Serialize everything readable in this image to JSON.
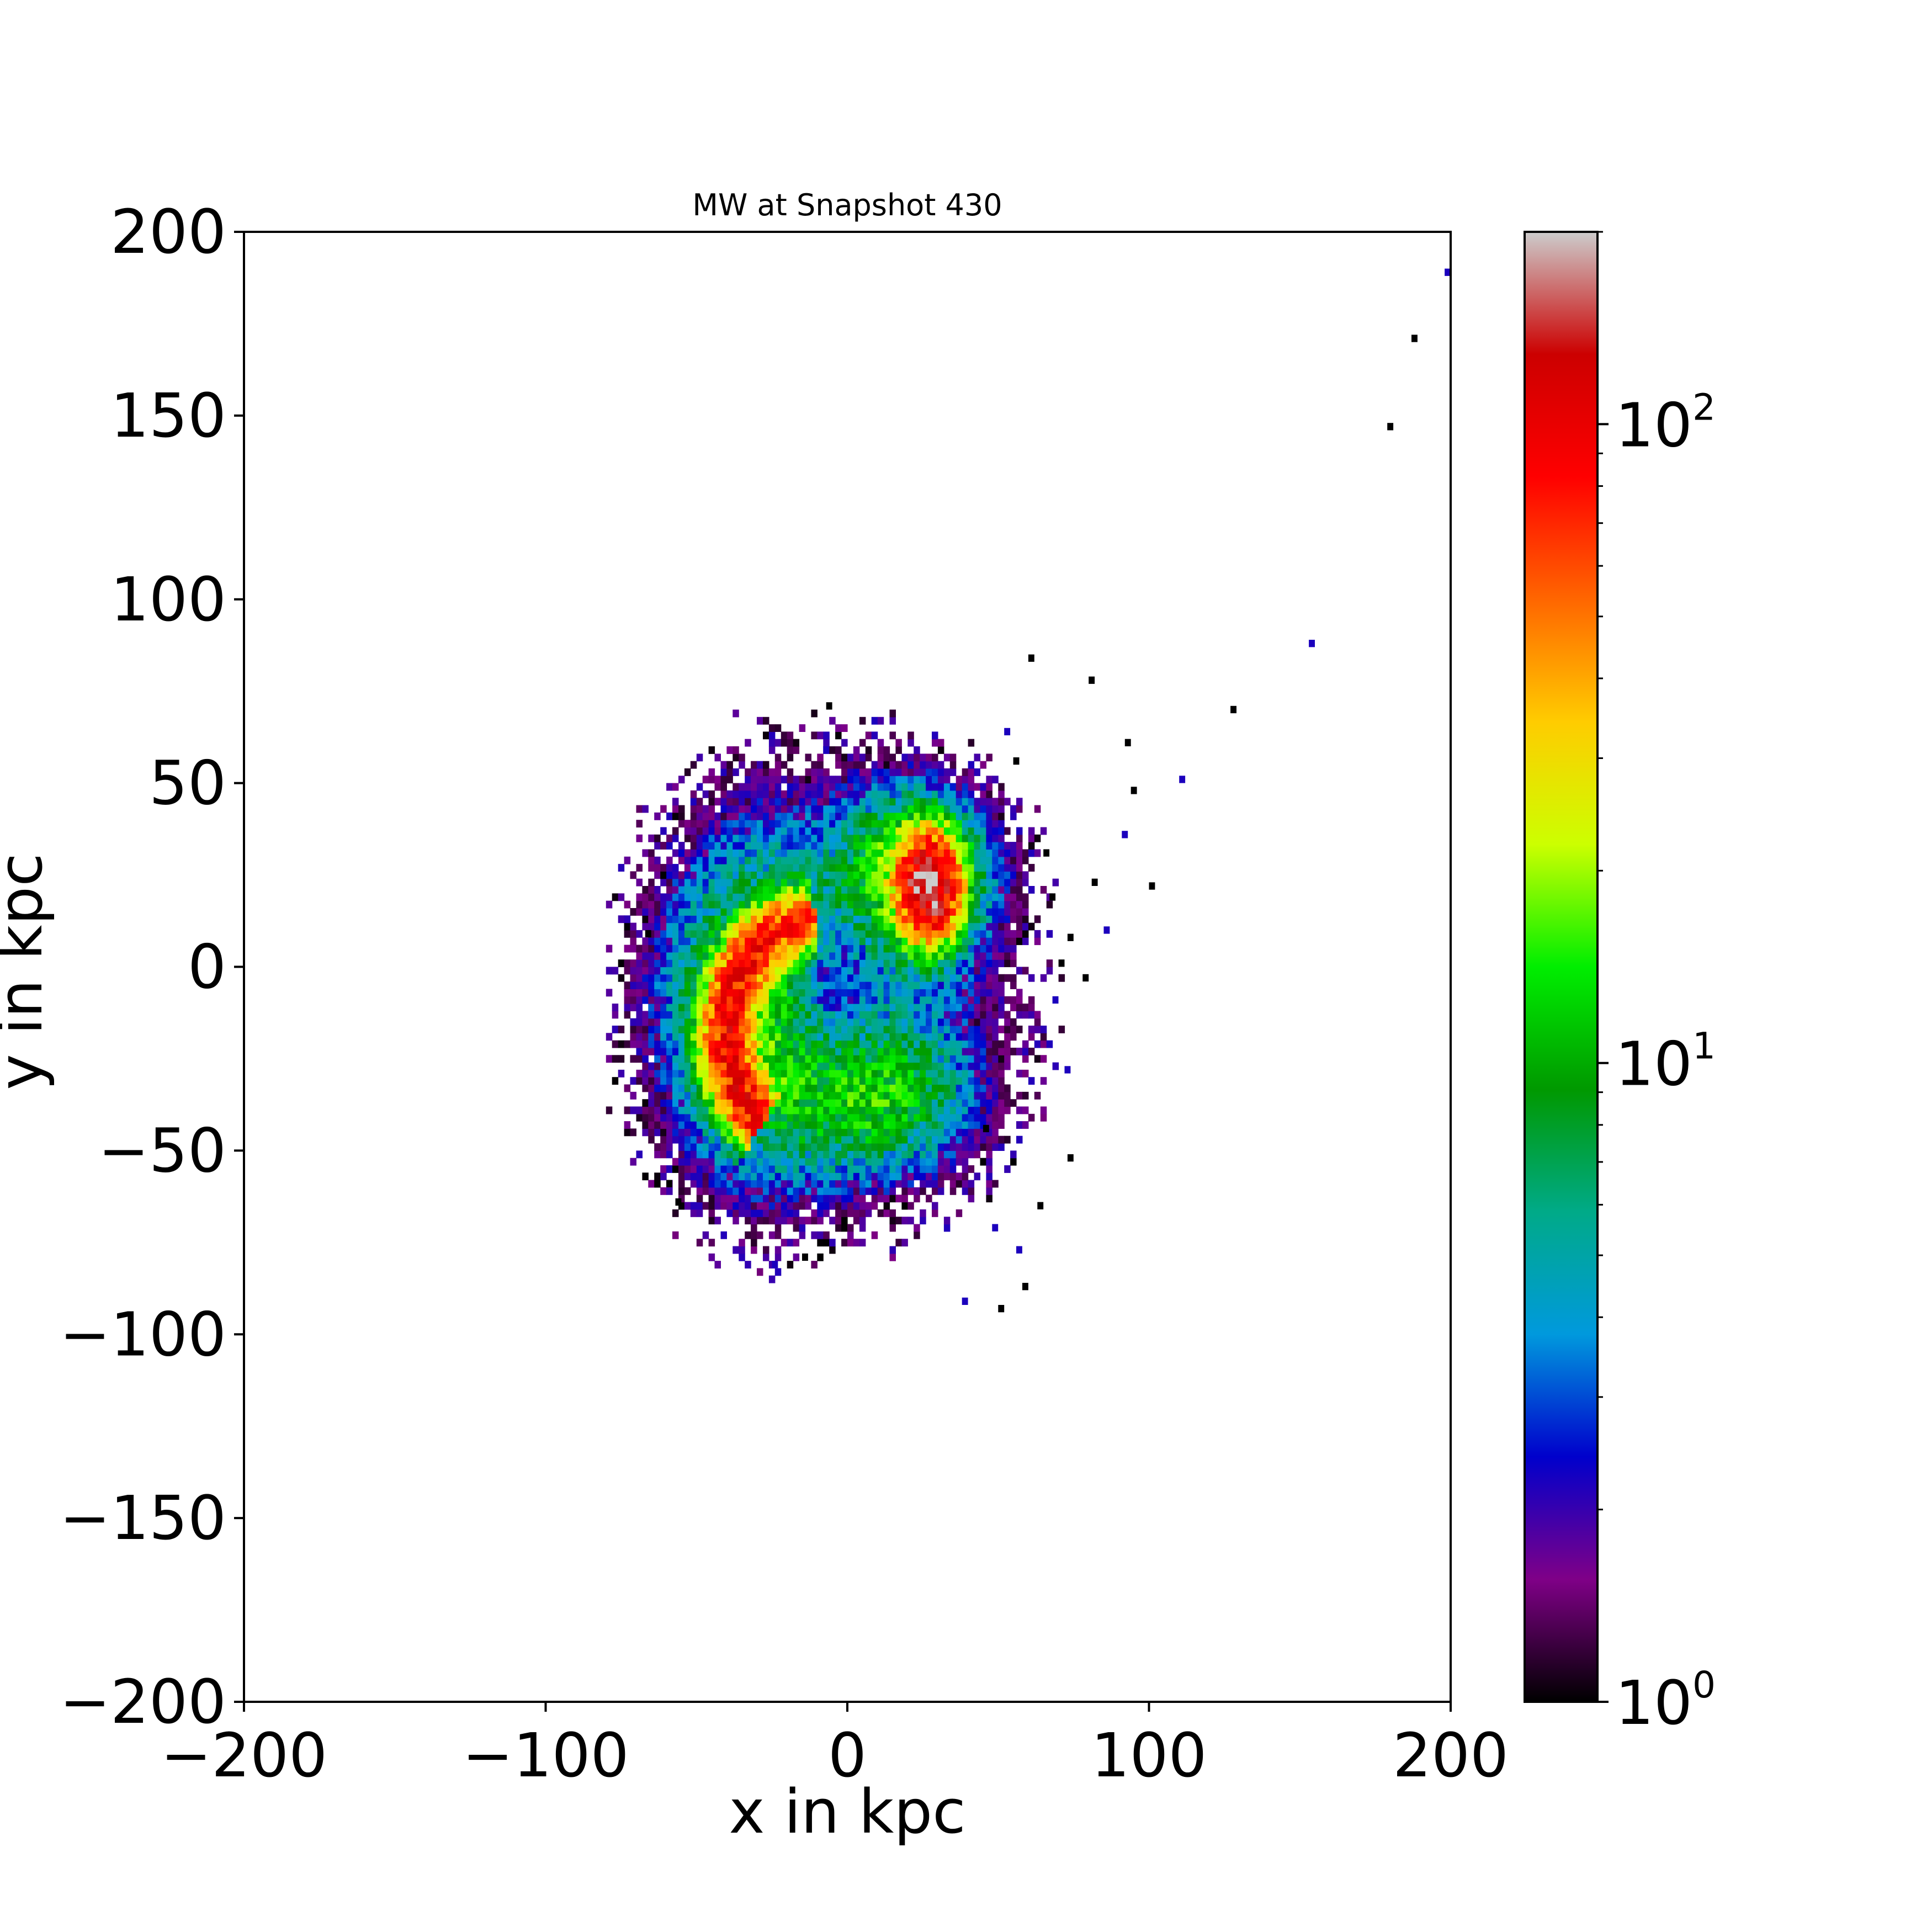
{
  "chart_data": {
    "type": "heatmap",
    "title": "MW at Snapshot 430",
    "xlabel": "x in kpc",
    "ylabel": "y in kpc",
    "xlim": [
      -200,
      200
    ],
    "ylim": [
      -200,
      200
    ],
    "x_ticks": [
      "−200",
      "−100",
      "0",
      "100",
      "200"
    ],
    "x_tick_values": [
      -200,
      -100,
      0,
      100,
      200
    ],
    "y_ticks": [
      "200",
      "150",
      "100",
      "50",
      "0",
      "−50",
      "−100",
      "−150",
      "−200"
    ],
    "y_tick_values": [
      200,
      150,
      100,
      50,
      0,
      -50,
      -100,
      -150,
      -200
    ],
    "colorbar": {
      "scale": "log",
      "range": [
        1,
        200
      ],
      "ticks": [
        {
          "value": 1,
          "base": "10",
          "exp": "0"
        },
        {
          "value": 10,
          "base": "10",
          "exp": "1"
        },
        {
          "value": 100,
          "base": "10",
          "exp": "2"
        }
      ],
      "colormap": "nipy_spectral",
      "stops": [
        "#000000",
        "#7f0087",
        "#0000cc",
        "#0099dd",
        "#00aa88",
        "#009900",
        "#00ee00",
        "#ccff00",
        "#ffcc00",
        "#ff6600",
        "#ff0000",
        "#cc0000",
        "#cccccc"
      ]
    },
    "structures": [
      {
        "name_hint": "crescent",
        "cx": -35,
        "cy": -20,
        "peak": 90
      },
      {
        "name_hint": "upper-right-blob",
        "cx": 27,
        "cy": 22,
        "peak": 180
      },
      {
        "name_hint": "lower-lobe",
        "cx": 5,
        "cy": -35,
        "peak": 10
      }
    ],
    "outliers": [
      [
        198,
        188
      ],
      [
        187,
        170
      ],
      [
        179,
        146
      ],
      [
        153,
        87
      ],
      [
        127,
        69
      ],
      [
        100,
        21
      ],
      [
        110,
        50
      ],
      [
        92,
        60
      ],
      [
        94,
        47
      ],
      [
        91,
        35
      ],
      [
        80,
        77
      ],
      [
        81,
        22
      ],
      [
        85,
        9
      ],
      [
        73,
        7
      ],
      [
        78,
        -4
      ],
      [
        72,
        -29
      ],
      [
        73,
        -53
      ],
      [
        60,
        83
      ],
      [
        52,
        63
      ],
      [
        55,
        55
      ],
      [
        63,
        -66
      ],
      [
        56,
        -78
      ],
      [
        58,
        -88
      ],
      [
        50,
        -94
      ],
      [
        38,
        -92
      ],
      [
        -67,
        8
      ],
      [
        -60,
        -60
      ],
      [
        -25,
        -82
      ],
      [
        -15,
        -80
      ],
      [
        -7,
        70
      ],
      [
        -8,
        58
      ],
      [
        65,
        30
      ],
      [
        67,
        18
      ],
      [
        68,
        -10
      ],
      [
        70,
        0
      ],
      [
        -57,
        -65
      ],
      [
        48,
        -72
      ],
      [
        45,
        -45
      ]
    ]
  }
}
